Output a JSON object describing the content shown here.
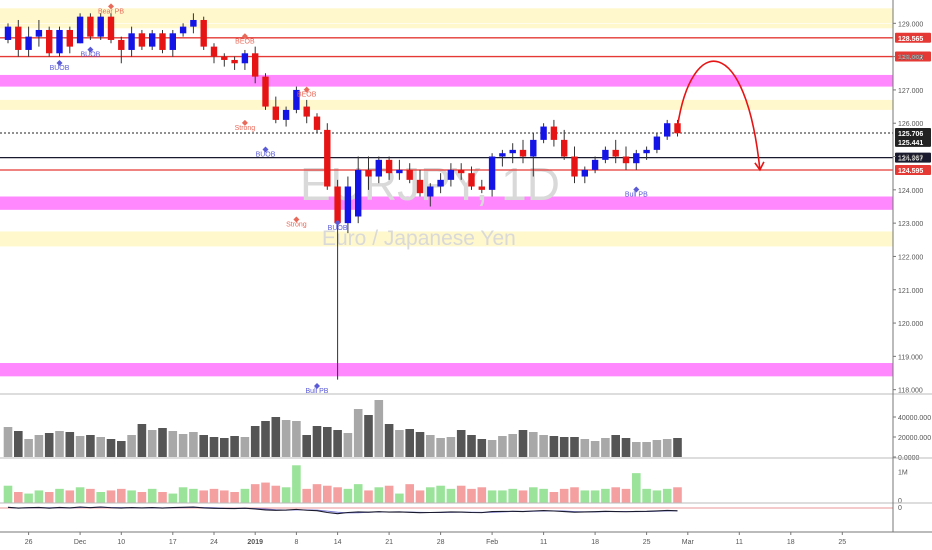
{
  "chart_data": {
    "type": "candlestick",
    "symbol": "EURJPY, 1D",
    "subtitle": "Euro / Japanese Yen",
    "price_ticks": [
      "129.000",
      "128.000",
      "127.000",
      "126.000",
      "125.000",
      "124.000",
      "123.000",
      "122.000",
      "121.000",
      "120.000",
      "119.000",
      "118.000"
    ],
    "price_range": [
      117.9,
      129.7
    ],
    "date_ticks": [
      {
        "label": "26",
        "i": 2
      },
      {
        "label": "Dec",
        "i": 7
      },
      {
        "label": "10",
        "i": 11
      },
      {
        "label": "17",
        "i": 16
      },
      {
        "label": "24",
        "i": 20
      },
      {
        "label": "2019",
        "i": 24,
        "bold": true
      },
      {
        "label": "8",
        "i": 28
      },
      {
        "label": "14",
        "i": 32
      },
      {
        "label": "21",
        "i": 37
      },
      {
        "label": "28",
        "i": 42
      },
      {
        "label": "Feb",
        "i": 47
      },
      {
        "label": "11",
        "i": 52
      },
      {
        "label": "18",
        "i": 57
      },
      {
        "label": "25",
        "i": 62
      },
      {
        "label": "Mar",
        "i": 66
      },
      {
        "label": "11",
        "i": 71
      },
      {
        "label": "18",
        "i": 76
      },
      {
        "label": "25",
        "i": 81
      }
    ],
    "candles": [
      [
        128.5,
        129.0,
        128.4,
        128.9
      ],
      [
        128.9,
        129.1,
        128.0,
        128.2
      ],
      [
        128.2,
        128.9,
        128.0,
        128.6
      ],
      [
        128.6,
        129.1,
        128.3,
        128.8
      ],
      [
        128.8,
        128.9,
        128.0,
        128.1
      ],
      [
        128.1,
        128.9,
        128.0,
        128.8
      ],
      [
        128.8,
        128.9,
        128.1,
        128.3
      ],
      [
        128.4,
        129.3,
        128.4,
        129.2
      ],
      [
        129.2,
        129.3,
        128.5,
        128.6
      ],
      [
        128.6,
        129.3,
        128.5,
        129.2
      ],
      [
        129.2,
        129.3,
        128.4,
        128.5
      ],
      [
        128.5,
        128.6,
        127.8,
        128.2
      ],
      [
        128.2,
        128.9,
        128.0,
        128.7
      ],
      [
        128.7,
        128.8,
        128.2,
        128.3
      ],
      [
        128.3,
        128.8,
        128.2,
        128.7
      ],
      [
        128.7,
        128.8,
        128.1,
        128.2
      ],
      [
        128.2,
        128.8,
        128.0,
        128.7
      ],
      [
        128.7,
        129.0,
        128.6,
        128.9
      ],
      [
        128.9,
        129.3,
        128.7,
        129.1
      ],
      [
        129.1,
        129.2,
        128.2,
        128.3
      ],
      [
        128.3,
        128.4,
        127.8,
        128.0
      ],
      [
        128.0,
        128.1,
        127.7,
        127.9
      ],
      [
        127.9,
        128.0,
        127.6,
        127.8
      ],
      [
        127.8,
        128.2,
        127.6,
        128.1
      ],
      [
        128.1,
        128.3,
        127.2,
        127.4
      ],
      [
        127.4,
        127.5,
        126.4,
        126.5
      ],
      [
        126.5,
        126.8,
        126.0,
        126.1
      ],
      [
        126.1,
        126.5,
        125.9,
        126.4
      ],
      [
        126.4,
        127.1,
        126.3,
        127.0
      ],
      [
        126.5,
        126.7,
        126.0,
        126.2
      ],
      [
        126.2,
        126.3,
        125.7,
        125.8
      ],
      [
        125.8,
        126.0,
        124.0,
        124.1
      ],
      [
        124.1,
        124.3,
        118.3,
        123.0
      ],
      [
        123.0,
        124.4,
        122.7,
        124.1
      ],
      [
        123.2,
        125.0,
        123.0,
        124.6
      ],
      [
        124.6,
        125.0,
        124.0,
        124.4
      ],
      [
        124.4,
        125.0,
        124.2,
        124.9
      ],
      [
        124.9,
        125.0,
        124.3,
        124.5
      ],
      [
        124.5,
        124.9,
        124.3,
        124.6
      ],
      [
        124.6,
        124.8,
        124.2,
        124.3
      ],
      [
        124.3,
        124.6,
        123.8,
        123.9
      ],
      [
        123.8,
        124.2,
        123.5,
        124.1
      ],
      [
        124.1,
        124.5,
        123.9,
        124.3
      ],
      [
        124.3,
        124.8,
        124.1,
        124.6
      ],
      [
        124.6,
        124.8,
        124.3,
        124.5
      ],
      [
        124.5,
        124.7,
        124.0,
        124.1
      ],
      [
        124.1,
        124.3,
        123.9,
        124.0
      ],
      [
        124.0,
        125.1,
        123.8,
        125.0
      ],
      [
        125.0,
        125.2,
        124.7,
        125.1
      ],
      [
        125.1,
        125.4,
        124.8,
        125.2
      ],
      [
        125.2,
        125.5,
        124.8,
        125.0
      ],
      [
        125.0,
        125.7,
        124.4,
        125.5
      ],
      [
        125.5,
        126.0,
        125.4,
        125.9
      ],
      [
        125.9,
        126.1,
        125.3,
        125.5
      ],
      [
        125.5,
        125.8,
        124.9,
        125.0
      ],
      [
        125.0,
        125.3,
        124.2,
        124.4
      ],
      [
        124.4,
        124.7,
        124.2,
        124.6
      ],
      [
        124.6,
        125.0,
        124.5,
        124.9
      ],
      [
        124.9,
        125.3,
        124.8,
        125.2
      ],
      [
        125.2,
        125.5,
        124.8,
        125.0
      ],
      [
        125.0,
        125.3,
        124.6,
        124.8
      ],
      [
        124.8,
        125.2,
        124.6,
        125.1
      ],
      [
        125.1,
        125.3,
        124.9,
        125.2
      ],
      [
        125.2,
        125.7,
        125.1,
        125.6
      ],
      [
        125.6,
        126.1,
        125.5,
        126.0
      ],
      [
        126.0,
        126.1,
        125.6,
        125.7
      ]
    ],
    "volume": [
      30000,
      26000,
      18000,
      22000,
      24000,
      26000,
      25000,
      21000,
      22000,
      20000,
      18000,
      16000,
      22000,
      33000,
      27000,
      29000,
      26000,
      23000,
      25000,
      22000,
      20000,
      19000,
      21000,
      20000,
      31000,
      36000,
      40000,
      37000,
      36000,
      22000,
      31000,
      30000,
      27000,
      24000,
      48000,
      42000,
      57000,
      33000,
      27000,
      28000,
      25000,
      22000,
      19000,
      20000,
      27000,
      22000,
      18000,
      17000,
      21000,
      23000,
      27000,
      25000,
      22000,
      21000,
      20000,
      20000,
      18000,
      16000,
      19000,
      22000,
      19000,
      15000,
      15000,
      17000,
      18000,
      19000
    ],
    "volume_ticks": [
      "40000.000",
      "20000.000",
      "0.0000"
    ],
    "indicator_ticks": [
      "1M",
      "0"
    ],
    "indicator": [
      0.55,
      0.35,
      0.3,
      0.4,
      0.35,
      0.45,
      0.4,
      0.5,
      0.45,
      0.35,
      0.4,
      0.45,
      0.4,
      0.35,
      0.45,
      0.35,
      0.3,
      0.5,
      0.45,
      0.4,
      0.45,
      0.4,
      0.35,
      0.45,
      0.6,
      0.65,
      0.55,
      0.5,
      1.2,
      0.45,
      0.6,
      0.55,
      0.5,
      0.45,
      0.6,
      0.4,
      0.5,
      0.55,
      0.3,
      0.6,
      0.4,
      0.5,
      0.55,
      0.45,
      0.55,
      0.45,
      0.5,
      0.4,
      0.4,
      0.45,
      0.4,
      0.5,
      0.45,
      0.35,
      0.45,
      0.5,
      0.4,
      0.4,
      0.45,
      0.5,
      0.45,
      0.95,
      0.45,
      0.4,
      0.45,
      0.5
    ],
    "horizontal_lines": [
      {
        "price": 128.565,
        "label": "128.565",
        "color": "#e53935",
        "style": "solid"
      },
      {
        "price": 128.002,
        "label": "128.002",
        "color": "#e53935",
        "style": "solid"
      },
      {
        "price": 125.706,
        "label": "125.706",
        "color": "#222222",
        "style": "dotted"
      },
      {
        "price": 125.441,
        "label": "125.441",
        "color": "#222222",
        "style": "none"
      },
      {
        "price": 124.967,
        "label": "124.967",
        "color": "#1a1a2e",
        "style": "solid"
      },
      {
        "price": 124.595,
        "label": "124.595",
        "color": "#e53935",
        "style": "solid"
      }
    ],
    "zones": [
      {
        "from": 129.0,
        "to": 129.45,
        "color": "#fff8cc"
      },
      {
        "from": 128.85,
        "to": 128.98,
        "color": "#fff8cc"
      },
      {
        "from": 127.1,
        "to": 127.45,
        "color": "#ff88ff"
      },
      {
        "from": 126.4,
        "to": 126.7,
        "color": "#fff8cc"
      },
      {
        "from": 123.4,
        "to": 123.8,
        "color": "#ff88ff"
      },
      {
        "from": 122.3,
        "to": 122.75,
        "color": "#fff8cc"
      },
      {
        "from": 118.4,
        "to": 118.8,
        "color": "#ff88ff"
      }
    ],
    "annotations": [
      {
        "text": "Bear PB",
        "i": 10,
        "price": 129.3,
        "color": "#e86a5a"
      },
      {
        "text": "BUOB",
        "i": 5,
        "price": 127.6,
        "color": "#5a5ad6"
      },
      {
        "text": "BUOB",
        "i": 8,
        "price": 128.0,
        "color": "#5a5ad6"
      },
      {
        "text": "BEOB",
        "i": 23,
        "price": 128.4,
        "color": "#e86a5a"
      },
      {
        "text": "BEOB",
        "i": 29,
        "price": 126.8,
        "color": "#e86a5a"
      },
      {
        "text": "BUOB",
        "i": 25,
        "price": 125.0,
        "color": "#5a5ad6"
      },
      {
        "text": "Strong",
        "i": 23,
        "price": 125.8,
        "color": "#e86a5a"
      },
      {
        "text": "Strong",
        "i": 28,
        "price": 122.9,
        "color": "#e86a5a"
      },
      {
        "text": "BUOB",
        "i": 32,
        "price": 122.8,
        "color": "#5a5ad6"
      },
      {
        "text": "Bull PB",
        "i": 30,
        "price": 117.9,
        "color": "#5a5ad6"
      },
      {
        "text": "Bull PB",
        "i": 61,
        "price": 123.8,
        "color": "#5a5ad6"
      }
    ],
    "projection": {
      "from_i": 65,
      "from_price": 125.9,
      "peak_i": 69,
      "peak_price": 127.5,
      "to_i": 73,
      "to_price": 124.6
    }
  }
}
